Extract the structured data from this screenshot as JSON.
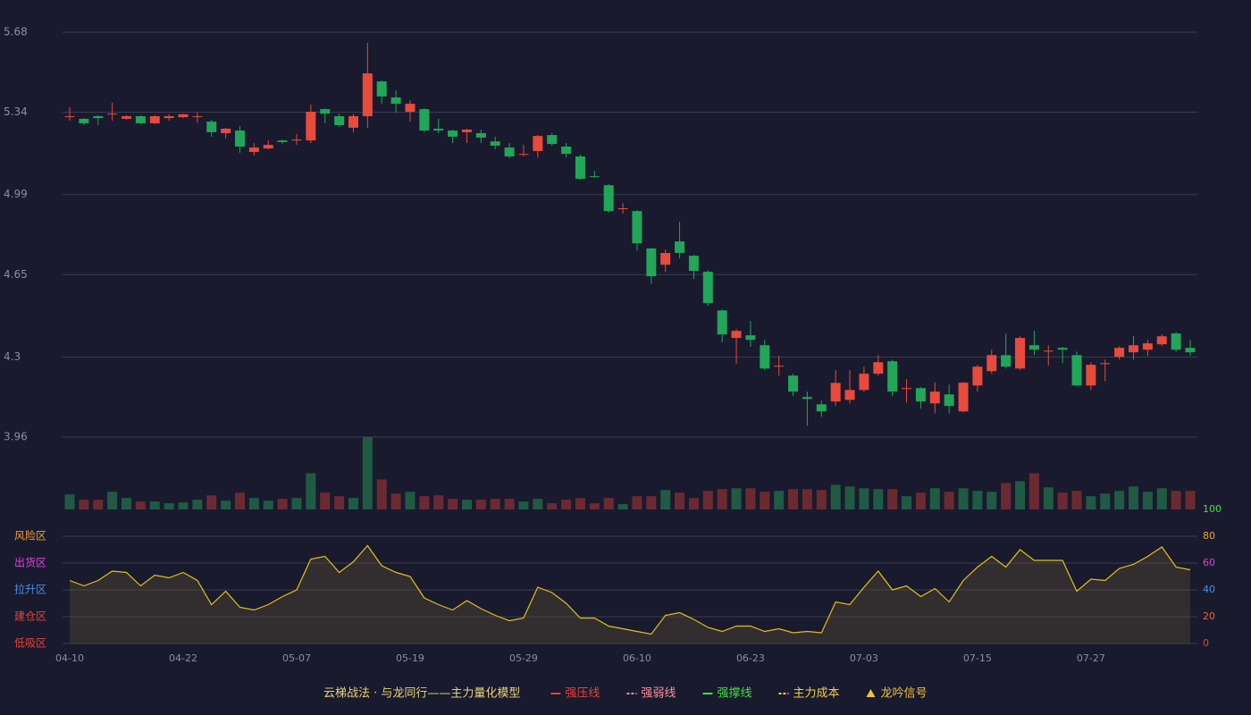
{
  "chart_data": {
    "type": "candlestick",
    "categories": [
      "04-10",
      null,
      null,
      null,
      null,
      null,
      null,
      null,
      "04-22",
      null,
      null,
      null,
      null,
      null,
      null,
      null,
      "05-07",
      null,
      null,
      null,
      null,
      null,
      null,
      null,
      "05-19",
      null,
      null,
      null,
      null,
      null,
      null,
      null,
      "05-29",
      null,
      null,
      null,
      null,
      null,
      null,
      null,
      "06-10",
      null,
      null,
      null,
      null,
      null,
      null,
      null,
      "06-23",
      null,
      null,
      null,
      null,
      null,
      null,
      null,
      "07-03",
      null,
      null,
      null,
      null,
      null,
      null,
      null,
      "07-15",
      null,
      null,
      null,
      null,
      null,
      null,
      null,
      "07-27",
      null,
      null,
      null,
      null,
      null,
      null,
      null
    ],
    "open": [
      5.319,
      5.312,
      5.323,
      5.331,
      5.312,
      5.323,
      5.293,
      5.315,
      5.319,
      5.319,
      5.3,
      5.251,
      5.262,
      5.171,
      5.186,
      5.22,
      5.22,
      5.22,
      5.353,
      5.323,
      5.274,
      5.323,
      5.471,
      5.403,
      5.342,
      5.353,
      5.27,
      5.262,
      5.255,
      5.251,
      5.216,
      5.19,
      5.16,
      5.175,
      5.243,
      5.194,
      5.152,
      5.068,
      5.03,
      4.928,
      4.92,
      4.761,
      4.692,
      4.791,
      4.73,
      4.662,
      4.498,
      4.381,
      4.392,
      4.35,
      4.259,
      4.221,
      4.13,
      4.099,
      4.111,
      4.118,
      4.16,
      4.229,
      4.282,
      4.164,
      4.168,
      4.103,
      4.141,
      4.069,
      4.179,
      4.24,
      4.308,
      4.251,
      4.35,
      4.324,
      4.339,
      4.308,
      4.179,
      4.27,
      4.301,
      4.32,
      4.331,
      4.354,
      4.4,
      4.339
    ],
    "high": [
      5.361,
      5.315,
      5.327,
      5.38,
      5.327,
      5.327,
      5.327,
      5.331,
      5.334,
      5.338,
      5.308,
      5.274,
      5.281,
      5.209,
      5.22,
      5.224,
      5.247,
      5.372,
      5.357,
      5.334,
      5.331,
      5.634,
      5.475,
      5.433,
      5.391,
      5.357,
      5.312,
      5.266,
      5.27,
      5.266,
      5.236,
      5.209,
      5.201,
      5.243,
      5.251,
      5.209,
      5.16,
      5.091,
      5.034,
      4.954,
      4.924,
      4.764,
      4.757,
      4.874,
      4.734,
      4.669,
      4.502,
      4.419,
      4.453,
      4.373,
      4.305,
      4.229,
      4.153,
      4.115,
      4.244,
      4.244,
      4.259,
      4.308,
      4.289,
      4.206,
      4.172,
      4.191,
      4.183,
      4.194,
      4.267,
      4.331,
      4.4,
      4.388,
      4.412,
      4.35,
      4.343,
      4.323,
      4.278,
      4.289,
      4.346,
      4.388,
      4.373,
      4.396,
      4.407,
      4.373
    ],
    "low": [
      5.304,
      5.285,
      5.285,
      5.304,
      5.308,
      5.289,
      5.289,
      5.304,
      5.315,
      5.296,
      5.236,
      5.228,
      5.167,
      5.156,
      5.182,
      5.205,
      5.201,
      5.209,
      5.293,
      5.277,
      5.255,
      5.274,
      5.376,
      5.338,
      5.3,
      5.255,
      5.251,
      5.209,
      5.209,
      5.209,
      5.182,
      5.144,
      5.152,
      5.148,
      5.198,
      5.148,
      5.053,
      5.061,
      4.913,
      4.909,
      4.753,
      4.612,
      4.662,
      4.719,
      4.631,
      4.517,
      4.362,
      4.27,
      4.343,
      4.244,
      4.221,
      4.134,
      4.008,
      4.046,
      4.092,
      4.103,
      4.153,
      4.221,
      4.134,
      4.107,
      4.08,
      4.061,
      4.061,
      4.065,
      4.153,
      4.229,
      4.251,
      4.244,
      4.308,
      4.263,
      4.274,
      4.175,
      4.16,
      4.198,
      4.289,
      4.289,
      4.305,
      4.346,
      4.323,
      4.305
    ],
    "close": [
      5.323,
      5.293,
      5.315,
      5.334,
      5.323,
      5.293,
      5.323,
      5.323,
      5.331,
      5.323,
      5.255,
      5.27,
      5.194,
      5.19,
      5.201,
      5.213,
      5.224,
      5.342,
      5.334,
      5.285,
      5.323,
      5.505,
      5.407,
      5.376,
      5.376,
      5.262,
      5.262,
      5.236,
      5.266,
      5.232,
      5.198,
      5.152,
      5.163,
      5.239,
      5.205,
      5.163,
      5.057,
      5.065,
      4.92,
      4.932,
      4.783,
      4.643,
      4.742,
      4.742,
      4.666,
      4.529,
      4.396,
      4.411,
      4.373,
      4.251,
      4.263,
      4.153,
      4.122,
      4.069,
      4.19,
      4.16,
      4.229,
      4.278,
      4.153,
      4.168,
      4.111,
      4.153,
      4.092,
      4.191,
      4.259,
      4.308,
      4.259,
      4.381,
      4.331,
      4.327,
      4.331,
      4.179,
      4.267,
      4.274,
      4.339,
      4.35,
      4.358,
      4.388,
      4.331,
      4.32
    ],
    "up_color": "#e84a3c",
    "down_color": "#21a65a",
    "ylim": [
      3.96,
      5.68
    ],
    "yticks": [
      3.96,
      4.3,
      4.65,
      4.99,
      5.34,
      5.68
    ],
    "grid": true,
    "volume": {
      "values": [
        17,
        11,
        11,
        20,
        13,
        9,
        9,
        7,
        8,
        11,
        16,
        10,
        19,
        13,
        10,
        12,
        13,
        41,
        19,
        15,
        13,
        82,
        34,
        18,
        20,
        15,
        16,
        12,
        11,
        11,
        12,
        12,
        9,
        12,
        7,
        11,
        13,
        7,
        13,
        6,
        15,
        15,
        22,
        19,
        13,
        21,
        23,
        24,
        24,
        20,
        21,
        23,
        23,
        22,
        28,
        26,
        24,
        23,
        23,
        15,
        19,
        24,
        20,
        24,
        21,
        20,
        30,
        32,
        41,
        25,
        19,
        21,
        15,
        18,
        21,
        26,
        20,
        24,
        21,
        21
      ],
      "up_color": "#1f5a45",
      "down_color": "#6b2a32"
    },
    "indicator": {
      "values": [
        47,
        43,
        47,
        54,
        53,
        43,
        51,
        49,
        53,
        47,
        29,
        39,
        27,
        25,
        29,
        35,
        40,
        63,
        65,
        53,
        61,
        73,
        58,
        53,
        50,
        34,
        29,
        25,
        32,
        26,
        21,
        17,
        19,
        42,
        38,
        30,
        19,
        19,
        13,
        11,
        9,
        7,
        21,
        23,
        18,
        12,
        9,
        13,
        13,
        9,
        11,
        8,
        9,
        8,
        31,
        29,
        42,
        54,
        40,
        43,
        35,
        41,
        31,
        47,
        57,
        65,
        57,
        70,
        62,
        62,
        62,
        39,
        48,
        47,
        56,
        59,
        65,
        72,
        57,
        55
      ],
      "color": "#e0c020",
      "ylim": [
        0,
        100
      ],
      "yticks": [
        {
          "value": 0,
          "color": "#e8413c"
        },
        {
          "value": 20,
          "color": "#f0603a"
        },
        {
          "value": 40,
          "color": "#4a90e2"
        },
        {
          "value": 60,
          "color": "#e040e0"
        },
        {
          "value": 80,
          "color": "#f0a030"
        },
        {
          "value": 100,
          "color": "#40e040"
        }
      ],
      "zones": [
        {
          "label": "风险区",
          "value": 80,
          "color": "#f0a030"
        },
        {
          "label": "出货区",
          "value": 60,
          "color": "#e040e0"
        },
        {
          "label": "拉升区",
          "value": 40,
          "color": "#4a90e2"
        },
        {
          "label": "建仓区",
          "value": 20,
          "color": "#e8413c"
        },
        {
          "label": "低吸区",
          "value": 0,
          "color": "#e8413c"
        }
      ]
    },
    "legend_title": "云梯战法 · 与龙同行——主力量化模型",
    "legend": [
      {
        "name": "强压线",
        "color": "#e8413c",
        "style": "solid"
      },
      {
        "name": "强弱线",
        "color": "#ff8fa0",
        "style": "dashed"
      },
      {
        "name": "强撑线",
        "color": "#40e040",
        "style": "solid"
      },
      {
        "name": "主力成本",
        "color": "#f0d040",
        "style": "dashed"
      },
      {
        "name": "龙吟信号",
        "color": "#f0c040",
        "style": "triangle"
      }
    ]
  }
}
